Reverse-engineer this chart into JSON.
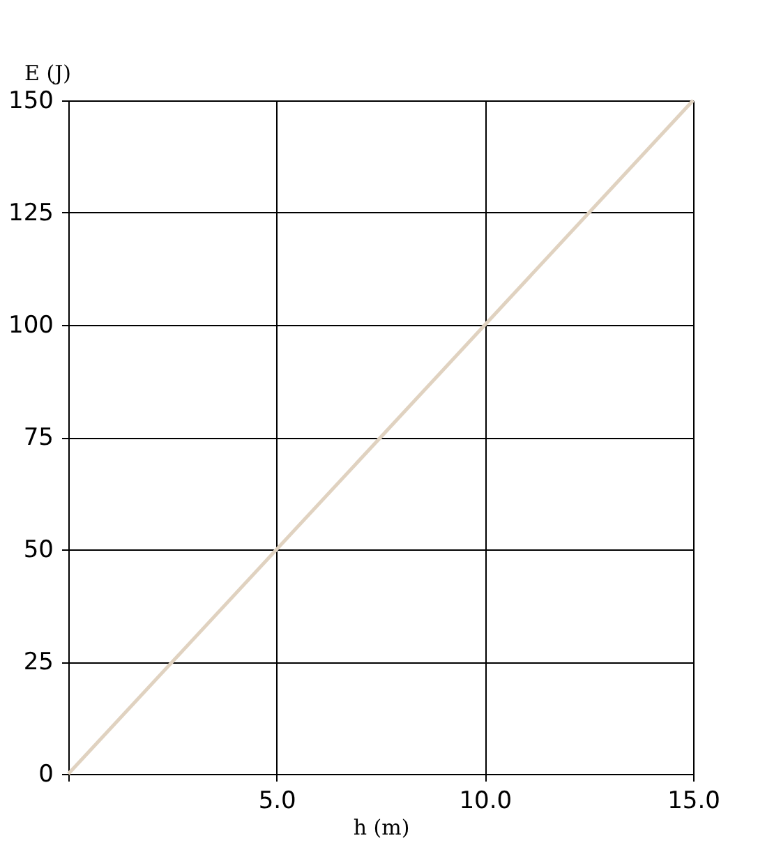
{
  "chart_data": {
    "type": "line",
    "xlabel": "h (m)",
    "ylabel": "E (J)",
    "x": [
      0,
      15
    ],
    "series": [
      {
        "color": "#e0d2c0",
        "values": [
          0,
          150
        ]
      }
    ],
    "xlim": [
      0,
      15
    ],
    "ylim": [
      0,
      150
    ],
    "xticks": [
      {
        "value": 0,
        "label": null
      },
      {
        "value": 5,
        "label": "5.0"
      },
      {
        "value": 10,
        "label": "10.0"
      },
      {
        "value": 15,
        "label": "15.0"
      }
    ],
    "yticks": [
      0,
      25,
      50,
      75,
      100,
      125,
      150
    ],
    "grid": true,
    "marker": "none",
    "line_style": "solid"
  }
}
